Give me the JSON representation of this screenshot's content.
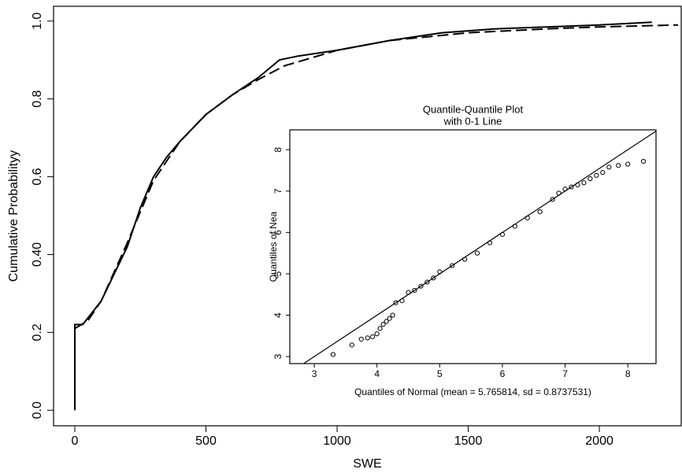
{
  "chart_data": [
    {
      "type": "line",
      "xlabel": "SWE",
      "ylabel": "Cumulative Probabilityy",
      "xlim": [
        -81,
        2312
      ],
      "ylim": [
        -0.04,
        1.038
      ],
      "xticks": [
        0,
        500,
        1000,
        1500,
        2000
      ],
      "yticks": [
        {
          "value": 0,
          "label": "0.0"
        },
        0.2,
        {
          "value": 0.4,
          "label": "0.40"
        },
        0.6,
        0.8,
        {
          "value": 1,
          "label": "1.0"
        }
      ],
      "series": [
        {
          "color": "#000000",
          "dash": false,
          "x": [
            0,
            0,
            30,
            100,
            150,
            200,
            250,
            300,
            350,
            400,
            500,
            600,
            700,
            780,
            850,
            1000,
            1200,
            1400,
            1600,
            1800,
            2000,
            2200
          ],
          "values": [
            0,
            0.22,
            0.22,
            0.28,
            0.35,
            0.42,
            0.52,
            0.6,
            0.65,
            0.69,
            0.76,
            0.81,
            0.855,
            0.9,
            0.91,
            0.925,
            0.95,
            0.97,
            0.98,
            0.985,
            0.99,
            0.997
          ]
        },
        {
          "color": "#000000",
          "dash": true,
          "x": [
            0,
            50,
            100,
            200,
            300,
            400,
            500,
            600,
            700,
            800,
            1000,
            1200,
            1500,
            1800,
            2000,
            2300
          ],
          "values": [
            0.21,
            0.23,
            0.28,
            0.43,
            0.59,
            0.69,
            0.76,
            0.81,
            0.85,
            0.885,
            0.925,
            0.95,
            0.97,
            0.98,
            0.985,
            0.99
          ]
        }
      ]
    },
    {
      "type": "scatter",
      "title": [
        "Quantile-Quantile Plot",
        "with 0-1 Line"
      ],
      "xlabel": "Quantiles of Normal (mean = 5.765814, sd = 0.8737531)",
      "ylabel": "Quantiles of Nea",
      "xlim": [
        2.61,
        8.45
      ],
      "ylim": [
        2.83,
        8.48
      ],
      "xticks": [
        3,
        4,
        5,
        6,
        7,
        8
      ],
      "yticks": [
        3,
        4,
        5,
        6,
        7,
        8
      ],
      "reference_line": true,
      "color": "#000000",
      "x": [
        3.3,
        3.6,
        3.75,
        3.85,
        3.93,
        4.0,
        4.05,
        4.1,
        4.15,
        4.2,
        4.25,
        4.3,
        4.4,
        4.5,
        4.6,
        4.7,
        4.8,
        4.9,
        5.0,
        5.2,
        5.4,
        5.6,
        5.8,
        6.0,
        6.2,
        6.4,
        6.6,
        6.8,
        6.9,
        7.0,
        7.1,
        7.2,
        7.3,
        7.4,
        7.5,
        7.6,
        7.7,
        7.85,
        8.0,
        8.25
      ],
      "values": [
        3.05,
        3.28,
        3.42,
        3.45,
        3.48,
        3.55,
        3.68,
        3.78,
        3.85,
        3.92,
        4.0,
        4.3,
        4.35,
        4.55,
        4.6,
        4.7,
        4.8,
        4.9,
        5.05,
        5.2,
        5.35,
        5.5,
        5.75,
        5.95,
        6.15,
        6.35,
        6.5,
        6.8,
        6.95,
        7.05,
        7.1,
        7.15,
        7.2,
        7.3,
        7.38,
        7.45,
        7.58,
        7.62,
        7.65,
        7.72
      ]
    }
  ]
}
